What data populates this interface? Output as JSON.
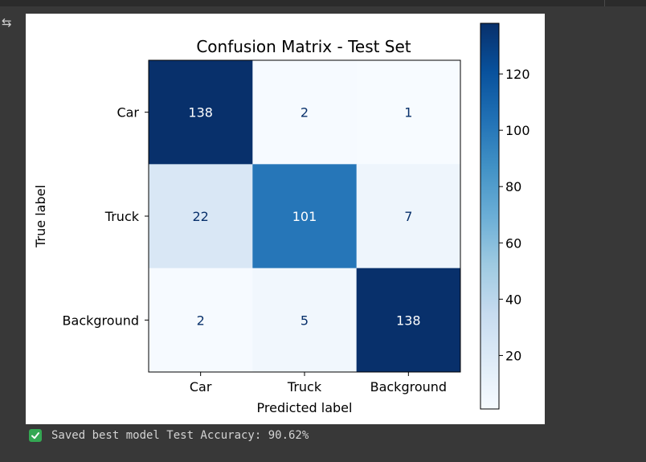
{
  "notebook": {
    "status": {
      "icon": "check-mark-icon",
      "message": "Saved best model Test Accuracy: 90.62%"
    },
    "output_icon": "output-toggle-icon"
  },
  "chart_data": {
    "type": "heatmap",
    "title": "Confusion Matrix - Test Set",
    "xlabel": "Predicted label",
    "ylabel": "True label",
    "x_categories": [
      "Car",
      "Truck",
      "Background"
    ],
    "y_categories": [
      "Car",
      "Truck",
      "Background"
    ],
    "values": [
      [
        138,
        2,
        1
      ],
      [
        22,
        101,
        7
      ],
      [
        2,
        5,
        138
      ]
    ],
    "colormap": "Blues",
    "color_range": [
      1,
      138
    ],
    "colorbar_ticks": [
      20,
      40,
      60,
      80,
      100,
      120
    ],
    "grid": false,
    "colors": {
      "low": "#f7fbff",
      "high": "#08306b",
      "text_light": "#ffffff",
      "text_dark": "#08306b"
    }
  }
}
